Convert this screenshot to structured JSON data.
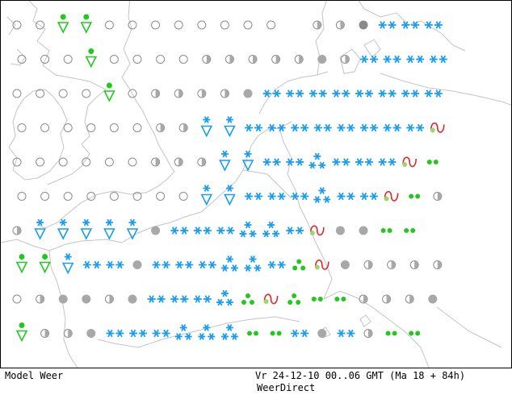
{
  "footer": {
    "model_label": "Model Weer",
    "valid_time": "Vr 24-12-10 00..06 GMT (Ma 18 + 84h)",
    "brand": "WeerDirect"
  },
  "colors": {
    "snow": "#1a9cf0",
    "rain": "#22c81e",
    "cloud_grey": "#a8a8a8",
    "cloud_outline": "#8c8c8c",
    "coast": "#c4c4c4",
    "sleet_red": "#e02828",
    "sleet_green": "#9fd56a"
  },
  "legend_symbols": {
    "o": "clear-outline-circle",
    "h": "half-cloud-circle",
    "d": "overcast-grey-dot",
    "s": "snow-pair",
    "S": "snow-triangle-cluster",
    "v": "snow-shower-triangle",
    "r": "rain-pair",
    "R": "rain-triangle-cluster",
    "g": "rain-shower-triangle",
    "w": "sleet-wave",
    "x": "missing-dark-dot"
  },
  "grid_rows": [
    "ooggoooooooo.hhxsss",
    "ooogoooohhhhhdhssss",
    "oooogohhhhdssssssss",
    "oooooohhvvssssssssw",
    "oooooohhhvvssSssswr",
    "oooooooovvsssSsswrh",
    "hvvvvvdsssSSswddrr",
    "ggvssdsssSSsRwdhhhh",
    "ohddhdsssSRwRrrhhhd",
    "ghhdsssSSSrrsdshrr"
  ]
}
